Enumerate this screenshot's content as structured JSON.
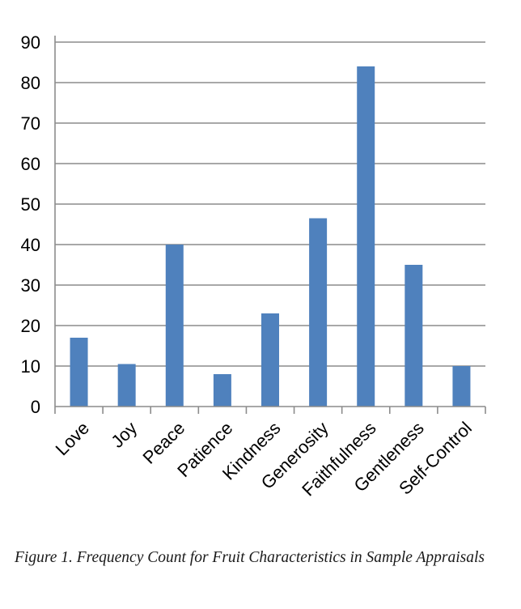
{
  "chart_data": {
    "type": "bar",
    "categories": [
      "Love",
      "Joy",
      "Peace",
      "Patience",
      "Kindness",
      "Generosity",
      "Faithfulness",
      "Gentleness",
      "Self-Control"
    ],
    "values": [
      17,
      10.5,
      40,
      8,
      23,
      46.5,
      84,
      35,
      10
    ],
    "ylim": [
      0,
      90
    ],
    "yticks": [
      0,
      10,
      20,
      30,
      40,
      50,
      60,
      70,
      80,
      90
    ],
    "grid": true,
    "legend": "none",
    "bar_color": "#4f81bd"
  },
  "caption": "Figure 1. Frequency Count for Fruit Characteristics in Sample Appraisals"
}
